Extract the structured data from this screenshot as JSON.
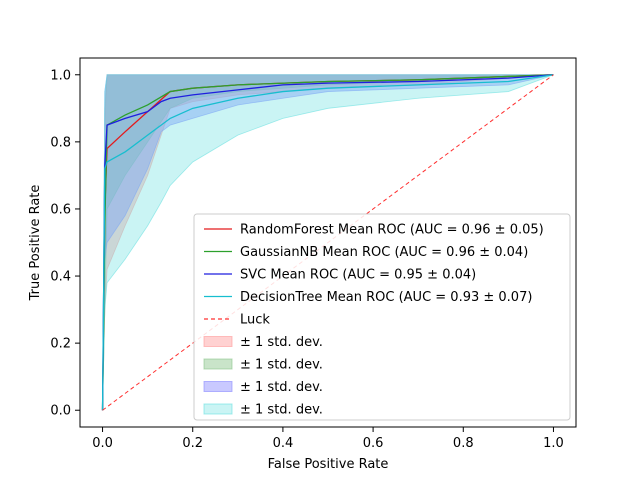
{
  "chart_data": {
    "type": "line",
    "title": "",
    "xlabel": "False Positive Rate",
    "ylabel": "True Positive Rate",
    "xlim": [
      -0.05,
      1.05
    ],
    "ylim": [
      -0.05,
      1.05
    ],
    "xticks": [
      0.0,
      0.2,
      0.4,
      0.6,
      0.8,
      1.0
    ],
    "yticks": [
      0.0,
      0.2,
      0.4,
      0.6,
      0.8,
      1.0
    ],
    "xtick_labels": [
      "0.0",
      "0.2",
      "0.4",
      "0.6",
      "0.8",
      "1.0"
    ],
    "ytick_labels": [
      "0.0",
      "0.2",
      "0.4",
      "0.6",
      "0.8",
      "1.0"
    ],
    "grid": false,
    "legend_position": "lower-right",
    "series": [
      {
        "name": "RandomForest Mean ROC (AUC = 0.96 ± 0.05)",
        "color": "#e41a1c",
        "style": "solid",
        "x": [
          0.0,
          0.005,
          0.01,
          0.05,
          0.1,
          0.15,
          0.2,
          0.3,
          0.5,
          0.7,
          0.9,
          1.0
        ],
        "y": [
          0.0,
          0.6,
          0.78,
          0.83,
          0.89,
          0.95,
          0.96,
          0.97,
          0.98,
          0.985,
          0.995,
          1.0
        ]
      },
      {
        "name": "GaussianNB Mean ROC (AUC = 0.96 ± 0.04)",
        "color": "#2ca02c",
        "style": "solid",
        "x": [
          0.0,
          0.005,
          0.01,
          0.05,
          0.1,
          0.15,
          0.2,
          0.3,
          0.5,
          0.7,
          0.9,
          1.0
        ],
        "y": [
          0.0,
          0.55,
          0.85,
          0.88,
          0.91,
          0.95,
          0.96,
          0.97,
          0.98,
          0.985,
          0.995,
          1.0
        ]
      },
      {
        "name": "SVC Mean ROC (AUC = 0.95 ± 0.04)",
        "color": "#1f1fdf",
        "style": "solid",
        "x": [
          0.0,
          0.005,
          0.01,
          0.05,
          0.1,
          0.13,
          0.15,
          0.2,
          0.3,
          0.4,
          0.5,
          0.7,
          0.9,
          1.0
        ],
        "y": [
          0.0,
          0.73,
          0.85,
          0.87,
          0.89,
          0.92,
          0.93,
          0.94,
          0.955,
          0.97,
          0.975,
          0.98,
          0.99,
          1.0
        ]
      },
      {
        "name": "DecisionTree Mean ROC (AUC = 0.93 ± 0.07)",
        "color": "#17becf",
        "style": "solid",
        "x": [
          0.0,
          0.005,
          0.01,
          0.05,
          0.1,
          0.13,
          0.15,
          0.2,
          0.3,
          0.4,
          0.5,
          0.7,
          0.9,
          1.0
        ],
        "y": [
          0.0,
          0.72,
          0.74,
          0.77,
          0.82,
          0.85,
          0.87,
          0.9,
          0.93,
          0.95,
          0.96,
          0.97,
          0.98,
          1.0
        ]
      },
      {
        "name": "Luck",
        "color": "#ff3030",
        "style": "dashed",
        "x": [
          0.0,
          1.0
        ],
        "y": [
          0.0,
          1.0
        ]
      }
    ],
    "bands": [
      {
        "name": "± 1 std. dev.",
        "color": "#ff9999",
        "opacity": 0.45,
        "x": [
          0.0,
          0.005,
          0.01,
          0.05,
          0.1,
          0.15,
          0.2,
          0.3,
          0.5,
          0.7,
          0.9,
          1.0
        ],
        "upper": [
          0.0,
          0.85,
          1.0,
          1.0,
          1.0,
          1.0,
          1.0,
          1.0,
          1.0,
          1.0,
          1.0,
          1.0
        ],
        "lower": [
          0.0,
          0.3,
          0.42,
          0.55,
          0.7,
          0.9,
          0.92,
          0.94,
          0.96,
          0.97,
          0.99,
          1.0
        ]
      },
      {
        "name": "± 1 std. dev.",
        "color": "#88c488",
        "opacity": 0.45,
        "x": [
          0.0,
          0.005,
          0.01,
          0.05,
          0.1,
          0.15,
          0.2,
          0.3,
          0.5,
          0.7,
          0.9,
          1.0
        ],
        "upper": [
          0.0,
          0.9,
          1.0,
          1.0,
          1.0,
          1.0,
          1.0,
          1.0,
          1.0,
          1.0,
          1.0,
          1.0
        ],
        "lower": [
          0.0,
          0.3,
          0.6,
          0.7,
          0.8,
          0.9,
          0.93,
          0.95,
          0.97,
          0.98,
          0.99,
          1.0
        ]
      },
      {
        "name": "± 1 std. dev.",
        "color": "#8888ff",
        "opacity": 0.45,
        "x": [
          0.0,
          0.005,
          0.01,
          0.05,
          0.1,
          0.13,
          0.15,
          0.2,
          0.3,
          0.4,
          0.5,
          0.7,
          0.9,
          1.0
        ],
        "upper": [
          0.0,
          0.95,
          1.0,
          1.0,
          1.0,
          1.0,
          1.0,
          1.0,
          1.0,
          1.0,
          1.0,
          1.0,
          1.0,
          1.0
        ],
        "lower": [
          0.0,
          0.45,
          0.5,
          0.58,
          0.72,
          0.83,
          0.85,
          0.87,
          0.91,
          0.93,
          0.95,
          0.96,
          0.97,
          1.0
        ]
      },
      {
        "name": "± 1 std. dev.",
        "color": "#66e0e0",
        "opacity": 0.35,
        "x": [
          0.0,
          0.005,
          0.01,
          0.05,
          0.1,
          0.13,
          0.15,
          0.2,
          0.3,
          0.4,
          0.5,
          0.7,
          0.9,
          1.0
        ],
        "upper": [
          0.0,
          0.95,
          1.0,
          1.0,
          1.0,
          1.0,
          1.0,
          1.0,
          1.0,
          1.0,
          1.0,
          1.0,
          1.0,
          1.0
        ],
        "lower": [
          0.0,
          0.3,
          0.38,
          0.45,
          0.55,
          0.62,
          0.67,
          0.74,
          0.82,
          0.87,
          0.9,
          0.93,
          0.95,
          1.0
        ]
      }
    ]
  }
}
